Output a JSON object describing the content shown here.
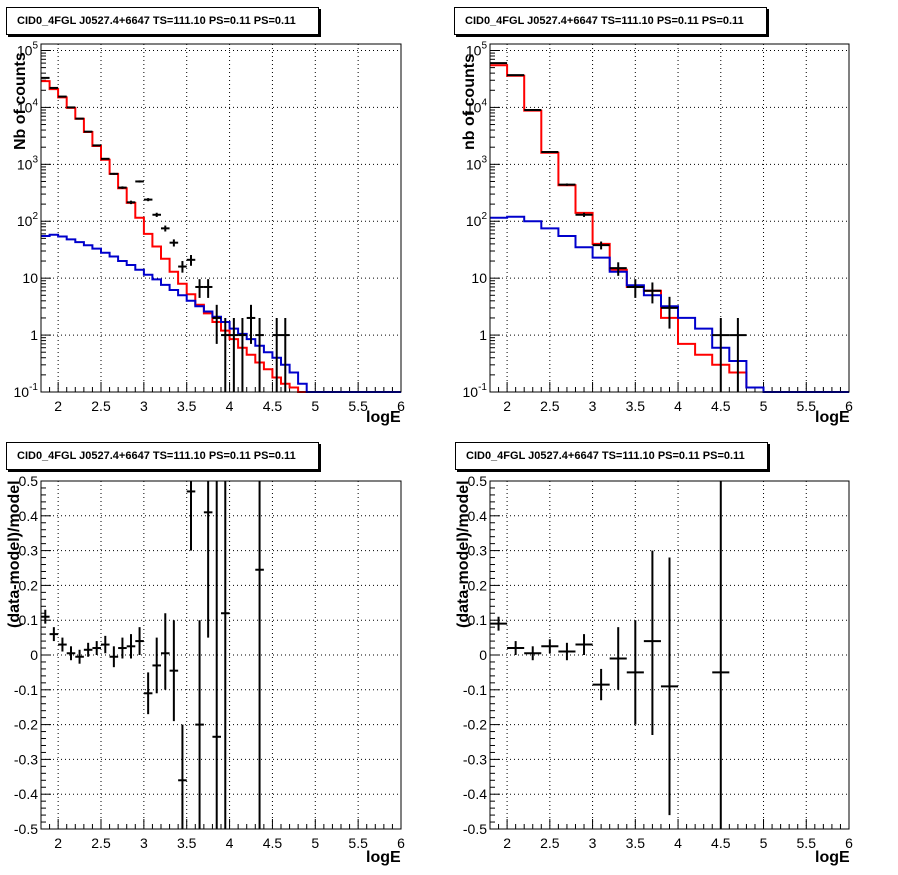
{
  "colors": {
    "total_model": "#ff0000",
    "source_model": "#0000cc",
    "data": "#000000",
    "grid": "#000000"
  },
  "chart_data": [
    {
      "type": "line",
      "pad": "top-left",
      "title": "CID0_4FGL J0527.4+6647 TS=111.10 PS=0.11 PS=0.11",
      "xlabel": "logE",
      "ylabel": "Nb of counts",
      "xlim": [
        1.8,
        6.0
      ],
      "ylim": [
        0.1,
        130000
      ],
      "yscale": "log",
      "grid": true,
      "x_ticks": [
        "2",
        "2.5",
        "3",
        "3.5",
        "4",
        "4.5",
        "5",
        "5.5",
        "6"
      ],
      "y_ticks": [
        "10^-1",
        "1",
        "10",
        "10^2",
        "10^3",
        "10^4",
        "10^5"
      ],
      "bin_edges": [
        1.8,
        1.9,
        2.0,
        2.1,
        2.2,
        2.3,
        2.4,
        2.5,
        2.6,
        2.7,
        2.8,
        2.9,
        3.0,
        3.1,
        3.2,
        3.3,
        3.4,
        3.5,
        3.6,
        3.7,
        3.8,
        3.9,
        4.0,
        4.1,
        4.2,
        4.3,
        4.4,
        4.5,
        4.6,
        4.7,
        4.8,
        4.9,
        5.0,
        5.1,
        5.2,
        5.3,
        5.4,
        5.5,
        5.6,
        5.7,
        5.8,
        5.9,
        6.0
      ],
      "series": [
        {
          "name": "",
          "color": "#ff0000",
          "kind": "step",
          "values": [
            29000,
            21000,
            15000,
            9800,
            6300,
            3700,
            2100,
            1200,
            680,
            380,
            210,
            115,
            60,
            36,
            22,
            13,
            8,
            5.2,
            3.4,
            2.4,
            1.7,
            1.2,
            0.85,
            0.6,
            0.45,
            0.33,
            0.25,
            0.18,
            0.14,
            0.12,
            0.1,
            0.1,
            0.1,
            0.1,
            0.1,
            0.1,
            0.1,
            0.1,
            0.1,
            0.1,
            0.1,
            0.1
          ]
        },
        {
          "name": "",
          "color": "#0000cc",
          "kind": "step",
          "values": [
            55,
            58,
            54,
            48,
            43,
            38,
            33,
            28,
            24,
            20,
            17,
            14,
            11.5,
            9.5,
            7.6,
            6.2,
            5.0,
            4.0,
            3.2,
            2.6,
            2.1,
            1.7,
            1.3,
            1.05,
            0.85,
            0.65,
            0.5,
            0.4,
            0.3,
            0.22,
            0.14,
            0.1,
            0.1,
            0.1,
            0.1,
            0.1,
            0.1,
            0.1,
            0.1,
            0.1,
            0.1,
            0.1
          ]
        },
        {
          "name": "",
          "color": "#000000",
          "kind": "errorbar",
          "points": [
            {
              "x": 1.85,
              "y": 33000,
              "lo": 32800,
              "hi": 33200
            },
            {
              "x": 1.95,
              "y": 22000,
              "lo": 21850,
              "hi": 22150
            },
            {
              "x": 2.05,
              "y": 15500,
              "lo": 15380,
              "hi": 15620
            },
            {
              "x": 2.15,
              "y": 10000,
              "lo": 9900,
              "hi": 10100
            },
            {
              "x": 2.25,
              "y": 6350,
              "lo": 6270,
              "hi": 6430
            },
            {
              "x": 2.35,
              "y": 3750,
              "lo": 3690,
              "hi": 3810
            },
            {
              "x": 2.45,
              "y": 2150,
              "lo": 2100,
              "hi": 2200
            },
            {
              "x": 2.55,
              "y": 1250,
              "lo": 1215,
              "hi": 1285
            },
            {
              "x": 2.65,
              "y": 680,
              "lo": 654,
              "hi": 706
            },
            {
              "x": 2.75,
              "y": 390,
              "lo": 370,
              "hi": 410
            },
            {
              "x": 2.85,
              "y": 215,
              "lo": 200,
              "hi": 230
            },
            {
              "x": 2.95,
              "y": 500,
              "lo": 478,
              "hi": 522
            },
            {
              "x": 3.05,
              "y": 240,
              "lo": 225,
              "hi": 255
            },
            {
              "x": 3.15,
              "y": 130,
              "lo": 119,
              "hi": 141
            },
            {
              "x": 3.25,
              "y": 75,
              "lo": 66,
              "hi": 84
            },
            {
              "x": 3.35,
              "y": 42,
              "lo": 36,
              "hi": 48
            },
            {
              "x": 3.45,
              "y": 16,
              "lo": 12.5,
              "hi": 20
            },
            {
              "x": 3.55,
              "y": 21,
              "lo": 16.5,
              "hi": 25.5
            },
            {
              "x": 3.65,
              "y": 7,
              "lo": 4.5,
              "hi": 9.6
            },
            {
              "x": 3.75,
              "y": 7,
              "lo": 4.5,
              "hi": 9.6
            },
            {
              "x": 3.85,
              "y": 2,
              "lo": 0.7,
              "hi": 3.4
            },
            {
              "x": 3.95,
              "y": 1,
              "lo": 0.1,
              "hi": 2
            },
            {
              "x": 4.05,
              "y": 1,
              "lo": 0.1,
              "hi": 2
            },
            {
              "x": 4.15,
              "y": 1,
              "lo": 0.1,
              "hi": 2
            },
            {
              "x": 4.25,
              "y": 2,
              "lo": 0.7,
              "hi": 3.4
            },
            {
              "x": 4.35,
              "y": 1,
              "lo": 0.1,
              "hi": 2
            },
            {
              "x": 4.55,
              "y": 1,
              "lo": 0.1,
              "hi": 2
            },
            {
              "x": 4.65,
              "y": 1,
              "lo": 0.1,
              "hi": 2
            }
          ]
        }
      ]
    },
    {
      "type": "line",
      "pad": "top-right",
      "title": "CID0_4FGL J0527.4+6647 TS=111.10 PS=0.11 PS=0.11",
      "xlabel": "logE",
      "ylabel": "nb of counts",
      "xlim": [
        1.8,
        6.0
      ],
      "ylim": [
        0.1,
        130000
      ],
      "yscale": "log",
      "grid": true,
      "x_ticks": [
        "2",
        "2.5",
        "3",
        "3.5",
        "4",
        "4.5",
        "5",
        "5.5",
        "6"
      ],
      "y_ticks": [
        "10^-1",
        "1",
        "10",
        "10^2",
        "10^3",
        "10^4",
        "10^5"
      ],
      "bin_edges": [
        1.8,
        2.0,
        2.2,
        2.4,
        2.6,
        2.8,
        3.0,
        3.2,
        3.4,
        3.6,
        3.8,
        4.0,
        4.2,
        4.4,
        4.6,
        4.8,
        5.0,
        5.2,
        5.4,
        5.6,
        5.8,
        6.0
      ],
      "series": [
        {
          "name": "",
          "color": "#ff0000",
          "kind": "step",
          "values": [
            55000,
            36000,
            8800,
            1600,
            430,
            140,
            40,
            14,
            7,
            6,
            2,
            0.7,
            0.45,
            0.3,
            0.22,
            0.12,
            0.1,
            0.1,
            0.1,
            0.1,
            0.1
          ]
        },
        {
          "name": "",
          "color": "#0000cc",
          "kind": "step",
          "values": [
            115,
            120,
            100,
            75,
            55,
            35,
            23,
            13,
            7.5,
            5,
            3.2,
            2,
            1.3,
            0.6,
            0.35,
            0.12,
            0.1,
            0.1,
            0.1,
            0.1,
            0.1
          ]
        },
        {
          "name": "",
          "color": "#000000",
          "kind": "errorbar",
          "points": [
            {
              "x": 1.9,
              "y": 60000,
              "lo": 59750,
              "hi": 60250
            },
            {
              "x": 2.1,
              "y": 37000,
              "lo": 36800,
              "hi": 37200
            },
            {
              "x": 2.3,
              "y": 9000,
              "lo": 8900,
              "hi": 9100
            },
            {
              "x": 2.5,
              "y": 1650,
              "lo": 1610,
              "hi": 1690
            },
            {
              "x": 2.7,
              "y": 440,
              "lo": 419,
              "hi": 461
            },
            {
              "x": 2.9,
              "y": 130,
              "lo": 119,
              "hi": 141
            },
            {
              "x": 3.1,
              "y": 38,
              "lo": 32,
              "hi": 44
            },
            {
              "x": 3.3,
              "y": 15,
              "lo": 11,
              "hi": 19
            },
            {
              "x": 3.5,
              "y": 7,
              "lo": 4.5,
              "hi": 9.6
            },
            {
              "x": 3.7,
              "y": 6,
              "lo": 3.6,
              "hi": 8.4
            },
            {
              "x": 3.9,
              "y": 3,
              "lo": 1.3,
              "hi": 4.7
            },
            {
              "x": 4.5,
              "y": 1,
              "lo": 0.1,
              "hi": 2
            },
            {
              "x": 4.7,
              "y": 1,
              "lo": 0.1,
              "hi": 2
            }
          ]
        }
      ]
    },
    {
      "type": "scatter",
      "pad": "bottom-left",
      "title": "CID0_4FGL J0527.4+6647 TS=111.10 PS=0.11 PS=0.11",
      "xlabel": "logE",
      "ylabel": "(data-model)/model",
      "xlim": [
        1.8,
        6.0
      ],
      "ylim": [
        -0.5,
        0.5
      ],
      "yscale": "linear",
      "grid": true,
      "x_ticks": [
        "2",
        "2.5",
        "3",
        "3.5",
        "4",
        "4.5",
        "5",
        "5.5",
        "6"
      ],
      "y_ticks": [
        "-0.5",
        "-0.4",
        "-0.3",
        "-0.2",
        "-0.1",
        "0",
        "0.1",
        "0.2",
        "0.3",
        "0.4",
        "0.5"
      ],
      "x_half_width": 0.05,
      "points": [
        {
          "x": 1.85,
          "y": 0.11,
          "lo": 0.09,
          "hi": 0.13
        },
        {
          "x": 1.95,
          "y": 0.06,
          "lo": 0.04,
          "hi": 0.08
        },
        {
          "x": 2.05,
          "y": 0.03,
          "lo": 0.01,
          "hi": 0.05
        },
        {
          "x": 2.15,
          "y": 0.005,
          "lo": -0.015,
          "hi": 0.025
        },
        {
          "x": 2.25,
          "y": -0.005,
          "lo": -0.025,
          "hi": 0.015
        },
        {
          "x": 2.35,
          "y": 0.015,
          "lo": -0.005,
          "hi": 0.035
        },
        {
          "x": 2.45,
          "y": 0.02,
          "lo": 0.0,
          "hi": 0.04
        },
        {
          "x": 2.55,
          "y": 0.03,
          "lo": 0.005,
          "hi": 0.055
        },
        {
          "x": 2.65,
          "y": -0.005,
          "lo": -0.035,
          "hi": 0.025
        },
        {
          "x": 2.75,
          "y": 0.02,
          "lo": -0.01,
          "hi": 0.05
        },
        {
          "x": 2.85,
          "y": 0.025,
          "lo": -0.01,
          "hi": 0.06
        },
        {
          "x": 2.95,
          "y": 0.04,
          "lo": 0.0,
          "hi": 0.08
        },
        {
          "x": 3.05,
          "y": -0.11,
          "lo": -0.17,
          "hi": -0.05
        },
        {
          "x": 3.15,
          "y": -0.03,
          "lo": -0.11,
          "hi": 0.05
        },
        {
          "x": 3.25,
          "y": 0.005,
          "lo": -0.1,
          "hi": 0.12
        },
        {
          "x": 3.35,
          "y": -0.045,
          "lo": -0.19,
          "hi": 0.1
        },
        {
          "x": 3.45,
          "y": -0.36,
          "lo": -0.5,
          "hi": -0.2
        },
        {
          "x": 3.55,
          "y": 0.47,
          "lo": 0.3,
          "hi": 0.5
        },
        {
          "x": 3.65,
          "y": -0.2,
          "lo": -0.5,
          "hi": 0.1
        },
        {
          "x": 3.75,
          "y": 0.41,
          "lo": 0.05,
          "hi": 0.5
        },
        {
          "x": 3.85,
          "y": -0.235,
          "lo": -0.5,
          "hi": 0.5
        },
        {
          "x": 3.95,
          "y": 0.12,
          "lo": -0.5,
          "hi": 0.5
        },
        {
          "x": 4.35,
          "y": 0.245,
          "lo": -0.5,
          "hi": 0.5
        }
      ]
    },
    {
      "type": "scatter",
      "pad": "bottom-right",
      "title": "CID0_4FGL J0527.4+6647 TS=111.10 PS=0.11 PS=0.11",
      "xlabel": "logE",
      "ylabel": "(data-model)/model",
      "xlim": [
        1.8,
        6.0
      ],
      "ylim": [
        -0.5,
        0.5
      ],
      "yscale": "linear",
      "grid": true,
      "x_ticks": [
        "2",
        "2.5",
        "3",
        "3.5",
        "4",
        "4.5",
        "5",
        "5.5",
        "6"
      ],
      "y_ticks": [
        "-0.5",
        "-0.4",
        "-0.3",
        "-0.2",
        "-0.1",
        "0",
        "0.1",
        "0.2",
        "0.3",
        "0.4",
        "0.5"
      ],
      "x_half_width": 0.1,
      "points": [
        {
          "x": 1.9,
          "y": 0.09,
          "lo": 0.07,
          "hi": 0.11
        },
        {
          "x": 2.1,
          "y": 0.02,
          "lo": 0.0,
          "hi": 0.04
        },
        {
          "x": 2.3,
          "y": 0.005,
          "lo": -0.015,
          "hi": 0.025
        },
        {
          "x": 2.5,
          "y": 0.025,
          "lo": 0.005,
          "hi": 0.045
        },
        {
          "x": 2.7,
          "y": 0.01,
          "lo": -0.015,
          "hi": 0.035
        },
        {
          "x": 2.9,
          "y": 0.03,
          "lo": 0.0,
          "hi": 0.06
        },
        {
          "x": 3.1,
          "y": -0.085,
          "lo": -0.13,
          "hi": -0.04
        },
        {
          "x": 3.3,
          "y": -0.01,
          "lo": -0.1,
          "hi": 0.08
        },
        {
          "x": 3.5,
          "y": -0.05,
          "lo": -0.2,
          "hi": 0.1
        },
        {
          "x": 3.7,
          "y": 0.04,
          "lo": -0.23,
          "hi": 0.3
        },
        {
          "x": 3.9,
          "y": -0.09,
          "lo": -0.46,
          "hi": 0.28
        },
        {
          "x": 4.5,
          "y": -0.05,
          "lo": -0.5,
          "hi": 0.5
        }
      ]
    }
  ]
}
